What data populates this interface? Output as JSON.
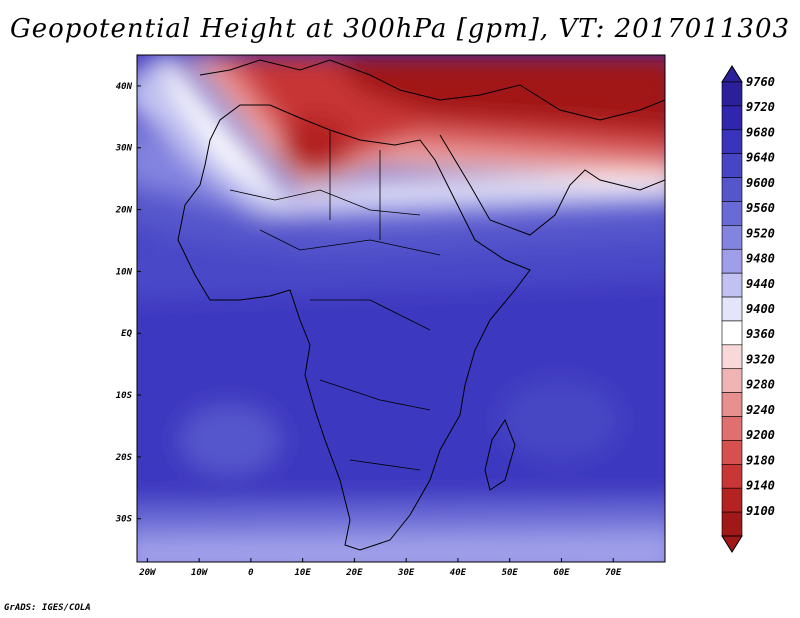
{
  "title": "Geopotential Height at 300hPa [gpm], VT: 2017011303",
  "credit": "GrADS: IGES/COLA",
  "map": {
    "lon_range": [
      -22,
      80
    ],
    "lat_range": [
      -37,
      45
    ],
    "x_ticks": [
      "20W",
      "10W",
      "0",
      "10E",
      "20E",
      "30E",
      "40E",
      "50E",
      "60E",
      "70E"
    ],
    "x_tick_values": [
      -20,
      -10,
      0,
      10,
      20,
      30,
      40,
      50,
      60,
      70
    ],
    "y_ticks": [
      "40N",
      "30N",
      "20N",
      "10N",
      "EQ",
      "10S",
      "20S",
      "30S"
    ],
    "y_tick_values": [
      40,
      30,
      20,
      10,
      0,
      -10,
      -20,
      -30
    ]
  },
  "colorbar": {
    "labels": [
      "9760",
      "9720",
      "9680",
      "9640",
      "9600",
      "9560",
      "9520",
      "9480",
      "9440",
      "9400",
      "9360",
      "9320",
      "9280",
      "9240",
      "9200",
      "9180",
      "9140",
      "9100"
    ],
    "colors": [
      "#2b1f9a",
      "#3025ad",
      "#3a33bb",
      "#4646c4",
      "#5656cc",
      "#6a6ad6",
      "#8383e0",
      "#9f9fe9",
      "#c2c2f2",
      "#e4e4fa",
      "#ffffff",
      "#f8d8d8",
      "#f0b4b4",
      "#e89090",
      "#e07070",
      "#d65050",
      "#c83636",
      "#b42222",
      "#a11818"
    ]
  }
}
